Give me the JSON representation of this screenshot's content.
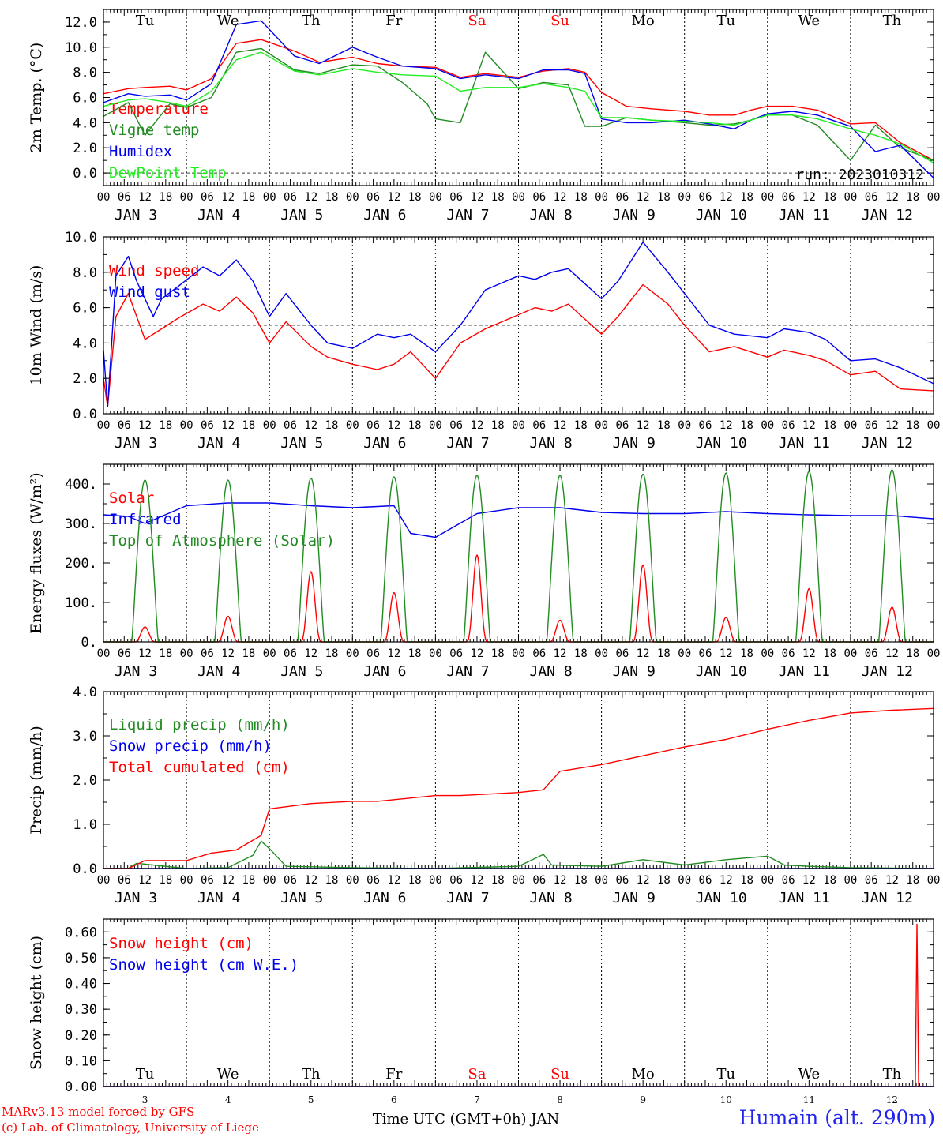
{
  "chart_data": {
    "type": "line",
    "run": "run: 2023010312",
    "x_axis": {
      "label": "Time UTC (GMT+0h) JAN",
      "days": [
        3,
        4,
        5,
        6,
        7,
        8,
        9,
        10,
        11,
        12
      ],
      "month": "JAN",
      "hour_ticks": [
        "00",
        "06",
        "12",
        "18"
      ],
      "weekdays": [
        "Tu",
        "We",
        "Th",
        "Fr",
        "Sa",
        "Su",
        "Mo",
        "Tu",
        "We",
        "Th"
      ],
      "weekend_color": "#ff0000",
      "start": "2023-01-03 00 UTC",
      "end": "2023-01-13 00 UTC"
    },
    "panels": [
      {
        "ylabel": "2m Temp. (°C)",
        "ylim": [
          -1.0,
          13.0
        ],
        "yticks": [
          0,
          2,
          4,
          6,
          8,
          10,
          12
        ],
        "tick_labels": [
          "0.0",
          "2.0",
          "4.0",
          "6.0",
          "8.0",
          "10.0",
          "12.0"
        ],
        "ref_line": 0,
        "series": [
          {
            "name": "Temperature",
            "color": "#ff0000",
            "x": [
              0,
              0.3,
              0.5,
              0.8,
              1,
              1.3,
              1.6,
              1.9,
              2.3,
              2.6,
              3,
              3.3,
              3.6,
              4,
              4.3,
              4.6,
              5,
              5.3,
              5.6,
              5.8,
              6,
              6.3,
              6.6,
              7,
              7.3,
              7.6,
              7.8,
              8,
              8.3,
              8.6,
              9,
              9.3,
              9.6,
              10
            ],
            "y": [
              6.3,
              6.7,
              6.8,
              6.9,
              6.6,
              7.5,
              10.3,
              10.6,
              9.7,
              8.8,
              9.2,
              8.7,
              8.5,
              8.4,
              7.6,
              7.9,
              7.6,
              8.1,
              8.3,
              8.0,
              6.4,
              5.3,
              5.1,
              4.9,
              4.6,
              4.6,
              5.0,
              5.3,
              5.3,
              5.0,
              3.9,
              4.0,
              2.4,
              1.0
            ]
          },
          {
            "name": "Vigne temp",
            "color": "#228b22",
            "x": [
              0,
              0.3,
              0.5,
              0.8,
              1,
              1.3,
              1.6,
              1.9,
              2.3,
              2.6,
              3,
              3.3,
              3.6,
              3.9,
              4,
              4.3,
              4.6,
              5,
              5.3,
              5.6,
              5.8,
              6,
              6.3,
              6.6,
              7,
              7.3,
              7.6,
              7.8,
              8,
              8.3,
              8.6,
              9,
              9.3,
              9.6,
              10
            ],
            "y": [
              4.5,
              5.6,
              3.0,
              5.5,
              5.2,
              6.0,
              9.6,
              9.9,
              8.2,
              7.9,
              8.6,
              8.5,
              7.2,
              5.5,
              4.3,
              4.0,
              9.6,
              6.7,
              7.2,
              7.0,
              3.7,
              3.7,
              4.4,
              4.2,
              4.0,
              3.8,
              3.9,
              4.2,
              4.6,
              4.6,
              3.8,
              1.0,
              3.8,
              2.0,
              1.0
            ]
          },
          {
            "name": "Humidex",
            "color": "#0000ee",
            "x": [
              0,
              0.3,
              0.5,
              0.8,
              1,
              1.3,
              1.6,
              1.9,
              2.3,
              2.6,
              3,
              3.3,
              3.6,
              4,
              4.3,
              4.6,
              5,
              5.3,
              5.6,
              5.8,
              6,
              6.3,
              6.6,
              7,
              7.3,
              7.6,
              7.8,
              8,
              8.3,
              8.6,
              9,
              9.3,
              9.6,
              10
            ],
            "y": [
              5.6,
              6.3,
              6.1,
              6.2,
              5.8,
              7.1,
              11.8,
              12.1,
              9.3,
              8.7,
              10.0,
              9.2,
              8.5,
              8.3,
              7.5,
              7.8,
              7.5,
              8.2,
              8.2,
              7.9,
              4.3,
              4.0,
              4.0,
              4.2,
              3.9,
              3.5,
              4.2,
              4.7,
              4.9,
              4.6,
              3.7,
              1.7,
              2.2,
              -0.4
            ]
          },
          {
            "name": "DewPoint Temp",
            "color": "#22ee22",
            "x": [
              0,
              0.3,
              0.5,
              0.8,
              1,
              1.3,
              1.6,
              1.9,
              2.3,
              2.6,
              3,
              3.3,
              3.6,
              4,
              4.3,
              4.6,
              5,
              5.3,
              5.6,
              5.8,
              6,
              6.3,
              6.6,
              7,
              7.3,
              7.6,
              7.8,
              8,
              8.3,
              8.6,
              9,
              9.3,
              9.6,
              10
            ],
            "y": [
              5.3,
              5.8,
              5.9,
              5.6,
              5.3,
              6.5,
              9.0,
              9.6,
              8.1,
              7.8,
              8.3,
              8.0,
              7.8,
              7.7,
              6.5,
              6.8,
              6.8,
              7.1,
              6.8,
              6.5,
              4.4,
              4.4,
              4.2,
              4.1,
              4.0,
              3.8,
              4.2,
              4.6,
              4.6,
              4.3,
              3.5,
              3.0,
              2.3,
              0.8
            ]
          }
        ]
      },
      {
        "ylabel": "10m Wind (m/s)",
        "ylim": [
          0,
          10
        ],
        "yticks": [
          0,
          2,
          4,
          6,
          8,
          10
        ],
        "tick_labels": [
          "0.0",
          "2.0",
          "4.0",
          "6.0",
          "8.0",
          "10.0"
        ],
        "ref_line": 5,
        "series": [
          {
            "name": "Wind speed",
            "color": "#ff0000",
            "x": [
              0,
              0.05,
              0.15,
              0.3,
              0.4,
              0.5,
              0.7,
              0.9,
              1.2,
              1.4,
              1.6,
              1.8,
              2,
              2.2,
              2.5,
              2.7,
              3,
              3.3,
              3.5,
              3.7,
              4,
              4.3,
              4.6,
              5,
              5.2,
              5.4,
              5.6,
              6,
              6.2,
              6.5,
              6.8,
              7,
              7.3,
              7.6,
              8,
              8.2,
              8.5,
              8.7,
              9,
              9.3,
              9.6,
              10
            ],
            "y": [
              2.0,
              0.4,
              5.5,
              6.8,
              5.5,
              4.2,
              4.8,
              5.4,
              6.2,
              5.8,
              6.6,
              5.7,
              4.0,
              5.2,
              3.8,
              3.2,
              2.8,
              2.5,
              2.8,
              3.5,
              2.0,
              4.0,
              4.8,
              5.6,
              6.0,
              5.8,
              6.2,
              4.5,
              5.5,
              7.3,
              6.2,
              5.0,
              3.5,
              3.8,
              3.2,
              3.6,
              3.3,
              3.0,
              2.2,
              2.4,
              1.4,
              1.3
            ]
          },
          {
            "name": "Wind gust",
            "color": "#0000ee",
            "x": [
              0,
              0.05,
              0.15,
              0.3,
              0.4,
              0.6,
              0.7,
              0.9,
              1.2,
              1.4,
              1.6,
              1.8,
              2,
              2.2,
              2.5,
              2.7,
              3,
              3.3,
              3.5,
              3.7,
              4,
              4.3,
              4.6,
              5,
              5.2,
              5.4,
              5.6,
              6,
              6.2,
              6.5,
              6.8,
              7,
              7.3,
              7.6,
              8,
              8.2,
              8.5,
              8.7,
              9,
              9.3,
              9.6,
              10
            ],
            "y": [
              3.6,
              0.4,
              7.8,
              8.9,
              7.5,
              5.5,
              6.5,
              7.2,
              8.3,
              7.8,
              8.7,
              7.5,
              5.5,
              6.8,
              5.0,
              4.0,
              3.7,
              4.5,
              4.3,
              4.5,
              3.5,
              5.0,
              7.0,
              7.8,
              7.6,
              8.0,
              8.2,
              6.5,
              7.5,
              9.7,
              8.0,
              6.8,
              5.0,
              4.5,
              4.3,
              4.8,
              4.6,
              4.2,
              3.0,
              3.1,
              2.6,
              1.7
            ]
          }
        ]
      },
      {
        "ylabel": "Energy fluxes (W/m²)",
        "ylim": [
          0,
          450
        ],
        "yticks": [
          0,
          100,
          200,
          300,
          400
        ],
        "tick_labels": [
          "0.",
          "100.",
          "200.",
          "300.",
          "400."
        ],
        "series": [
          {
            "name": "Solar",
            "color": "#ff0000",
            "daily_peak_hour": 12,
            "daily_peaks": [
              38,
              65,
              178,
              125,
              220,
              55,
              195,
              62,
              135,
              88
            ]
          },
          {
            "name": "Infrared",
            "color": "#0000ee",
            "x": [
              0,
              0.3,
              0.5,
              1,
              1.5,
              2,
              2.5,
              3,
              3.5,
              3.7,
              4,
              4.5,
              5,
              5.5,
              6,
              6.5,
              7,
              7.5,
              8,
              8.5,
              9,
              9.5,
              10
            ],
            "y": [
              322,
              318,
              300,
              345,
              352,
              352,
              345,
              340,
              345,
              275,
              265,
              325,
              340,
              340,
              328,
              325,
              325,
              330,
              325,
              322,
              320,
              320,
              312
            ]
          },
          {
            "name": "Top of Atmosphere (Solar)",
            "color": "#228b22",
            "daily_peak_hour": 12,
            "daily_peaks": [
              410,
              410,
              415,
              418,
              422,
              422,
              425,
              428,
              432,
              436
            ]
          }
        ]
      },
      {
        "ylabel": "Precip (mm/h)",
        "ylim": [
          0,
          4.0
        ],
        "yticks": [
          0,
          1,
          2,
          3,
          4
        ],
        "tick_labels": [
          "0.0",
          "1.0",
          "2.0",
          "3.0",
          "4.0"
        ],
        "series": [
          {
            "name": "Liquid precip (mm/h)",
            "color": "#228b22",
            "x": [
              0,
              0.3,
              0.4,
              1,
              1.5,
              1.8,
              1.9,
              2,
              2.2,
              3,
              4,
              5,
              5.3,
              5.4,
              6,
              6.5,
              7,
              7.5,
              8,
              8.2,
              8.5,
              9,
              10
            ],
            "y": [
              0,
              0,
              0.12,
              0,
              0.02,
              0.3,
              0.62,
              0.45,
              0.05,
              0.02,
              0,
              0.05,
              0.32,
              0.08,
              0.05,
              0.2,
              0.08,
              0.2,
              0.28,
              0.08,
              0.05,
              0.02,
              0
            ]
          },
          {
            "name": "Snow precip (mm/h)",
            "color": "#0000ee",
            "x": [
              0,
              10
            ],
            "y": [
              0,
              0
            ]
          },
          {
            "name": "Total cumulated (cm)",
            "color": "#ff0000",
            "x": [
              0,
              0.3,
              0.5,
              1,
              1.3,
              1.6,
              1.9,
              2,
              2.5,
              3,
              3.3,
              4,
              4.3,
              5,
              5.3,
              5.5,
              6,
              6.5,
              7,
              7.5,
              8,
              8.5,
              9,
              9.5,
              10
            ],
            "y": [
              0,
              0,
              0.18,
              0.18,
              0.35,
              0.42,
              0.75,
              1.35,
              1.47,
              1.52,
              1.52,
              1.65,
              1.65,
              1.72,
              1.78,
              2.2,
              2.35,
              2.55,
              2.75,
              2.92,
              3.15,
              3.35,
              3.52,
              3.58,
              3.62
            ]
          }
        ]
      },
      {
        "ylabel": "Snow height (cm)",
        "ylim": [
          0,
          0.65
        ],
        "yticks": [
          0,
          0.1,
          0.2,
          0.3,
          0.4,
          0.5,
          0.6
        ],
        "tick_labels": [
          "0.00",
          "0.10",
          "0.20",
          "0.30",
          "0.40",
          "0.50",
          "0.60"
        ],
        "series": [
          {
            "name": "Snow height (cm)",
            "color": "#ff0000",
            "x": [
              0,
              9.78,
              9.8,
              9.82,
              10
            ],
            "y": [
              0,
              0,
              0.63,
              0,
              0
            ]
          },
          {
            "name": "Snow height (cm W.E.)",
            "color": "#0000ee",
            "x": [
              0,
              10
            ],
            "y": [
              0,
              0
            ]
          }
        ]
      }
    ]
  },
  "footer": {
    "credit_line1": "MARv3.13 model forced by GFS",
    "credit_line2": "(c) Lab. of Climatology, University of Liege",
    "station": "Humain (alt. 290m)"
  }
}
